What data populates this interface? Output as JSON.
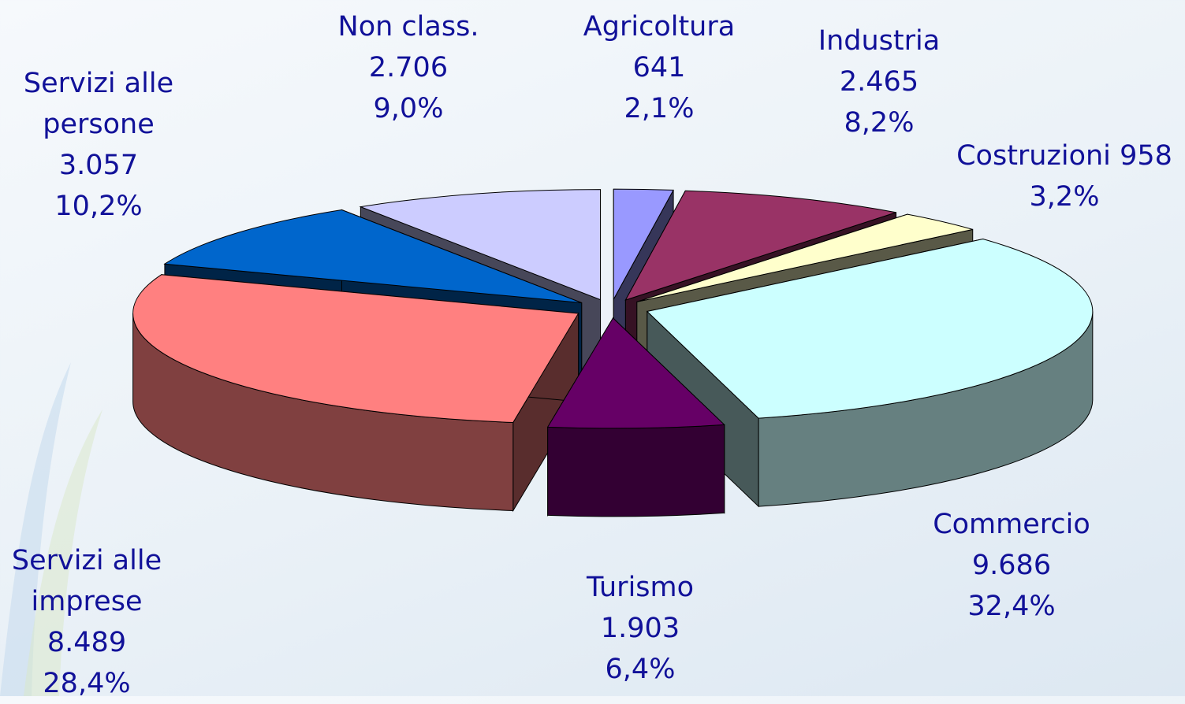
{
  "chart_data": {
    "type": "pie3d",
    "categories": [
      "Agricoltura",
      "Industria",
      "Costruzioni",
      "Commercio",
      "Turismo",
      "Servizi alle imprese",
      "Servizi alle persone",
      "Non class."
    ],
    "values": [
      641,
      2465,
      958,
      9686,
      1903,
      8489,
      3057,
      2706
    ],
    "value_labels": [
      "641",
      "2.465",
      "958",
      "9.686",
      "1.903",
      "8.489",
      "3.057",
      "2.706"
    ],
    "percents": [
      2.1,
      8.2,
      3.2,
      32.4,
      6.4,
      28.4,
      10.2,
      9.0
    ],
    "percent_labels": [
      "2,1%",
      "8,2%",
      "3,2%",
      "32,4%",
      "6,4%",
      "28,4%",
      "10,2%",
      "9,0%"
    ],
    "colors": [
      "#9999ff",
      "#993366",
      "#ffffcc",
      "#ccffff",
      "#660066",
      "#ff8080",
      "#0066cc",
      "#ccccff"
    ]
  }
}
